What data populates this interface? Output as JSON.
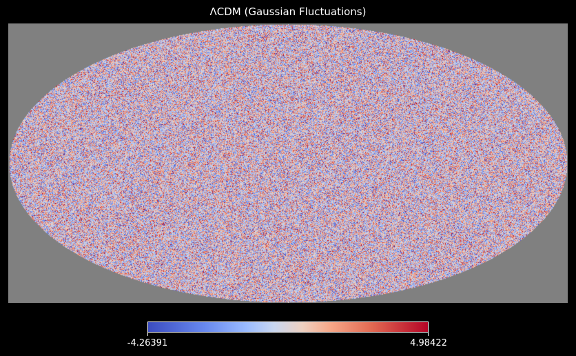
{
  "chart_data": {
    "type": "heatmap",
    "projection": "mollweide",
    "title": "ΛCDM (Gaussian Fluctuations)",
    "colormap": "coolwarm",
    "value_range": [
      -4.26391,
      4.98422
    ],
    "colorbar": {
      "orientation": "horizontal",
      "min_label": "-4.26391",
      "max_label": "4.98422"
    },
    "background_color": "#808080",
    "figure_background": "#000000",
    "grid": false
  }
}
